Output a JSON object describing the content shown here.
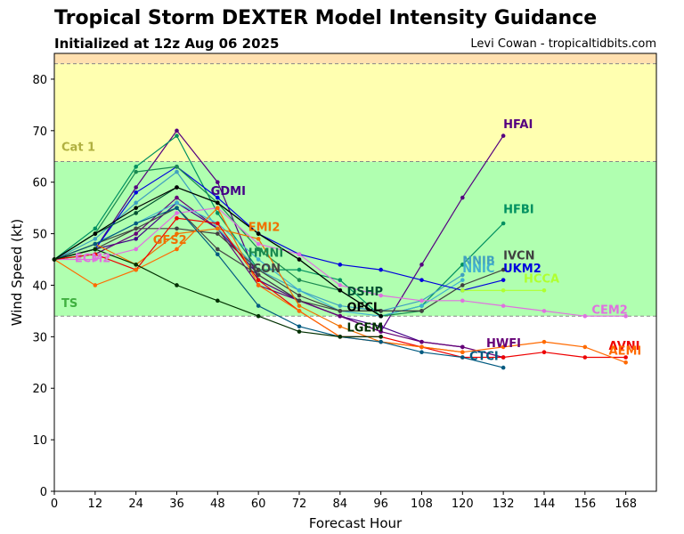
{
  "chart_data": {
    "type": "line",
    "title": "Tropical Storm DEXTER Model Intensity Guidance",
    "subtitle": "Initialized at 12z Aug 06 2025",
    "credit": "Levi Cowan - tropicaltidbits.com",
    "xlabel": "Forecast Hour",
    "ylabel": "Wind Speed (kt)",
    "xlim": [
      0,
      177
    ],
    "ylim": [
      0,
      85
    ],
    "xticks": [
      0,
      12,
      24,
      36,
      48,
      60,
      72,
      84,
      96,
      108,
      120,
      132,
      144,
      156,
      168
    ],
    "yticks": [
      0,
      10,
      20,
      30,
      40,
      50,
      60,
      70,
      80
    ],
    "bands": [
      {
        "label": "",
        "from": 83,
        "to": 85,
        "color": "#ffe0b0"
      },
      {
        "label": "Cat 1",
        "from": 64,
        "to": 83,
        "color": "#ffffb0",
        "label_color": "#b0b040"
      },
      {
        "label": "TS",
        "from": 34,
        "to": 64,
        "color": "#b0ffb0",
        "label_color": "#40b040"
      }
    ],
    "series": [
      {
        "name": "HFAI",
        "color": "#550080",
        "x": [
          0,
          12,
          24,
          36,
          48,
          60,
          72,
          84,
          96,
          108,
          120,
          132
        ],
        "y": [
          45,
          47,
          59,
          70,
          60,
          41,
          37,
          34,
          31,
          44,
          57,
          69
        ],
        "label_x": 132,
        "label_y": 70.5
      },
      {
        "name": "GDMI",
        "color": "#440088",
        "x": [
          0,
          12,
          24,
          36,
          48,
          60,
          72,
          84,
          96,
          108,
          120
        ],
        "y": [
          45,
          47,
          49,
          56,
          51,
          42,
          37,
          34,
          32,
          29,
          28
        ],
        "label_x": 46,
        "label_y": 57.5
      },
      {
        "name": "HWFI",
        "color": "#660077",
        "x": [
          0,
          12,
          24,
          36,
          48,
          60,
          72,
          84,
          96,
          108,
          120,
          132
        ],
        "y": [
          45,
          46,
          50,
          57,
          51,
          40,
          37,
          34,
          31,
          29,
          28,
          26
        ],
        "label_x": 127,
        "label_y": 28
      },
      {
        "name": "HFBI",
        "color": "#009060",
        "x": [
          0,
          12,
          24,
          36,
          48,
          60,
          72,
          84,
          96,
          108,
          120,
          132
        ],
        "y": [
          45,
          51,
          63,
          69,
          54,
          43,
          43,
          41,
          34,
          36,
          44,
          52
        ],
        "label_x": 132,
        "label_y": 54
      },
      {
        "name": "NNIB",
        "color": "#40a0c0",
        "x": [
          0,
          12,
          24,
          36,
          48,
          60,
          72,
          84,
          96,
          108,
          120
        ],
        "y": [
          45,
          49,
          56,
          62,
          51,
          43,
          39,
          36,
          35,
          37,
          42
        ],
        "label_x": 120,
        "label_y": 44
      },
      {
        "name": "NNIC",
        "color": "#40b0d0",
        "x": [
          0,
          12,
          24,
          36,
          48,
          60,
          72,
          84,
          96,
          108,
          120
        ],
        "y": [
          45,
          48,
          52,
          56,
          52,
          45,
          39,
          35,
          34,
          36,
          41
        ],
        "label_x": 120,
        "label_y": 42.5
      },
      {
        "name": "IVCN",
        "color": "#404040",
        "x": [
          0,
          12,
          24,
          36,
          48,
          60,
          72,
          84,
          96,
          108,
          120,
          132
        ],
        "y": [
          45,
          48,
          51,
          51,
          50,
          43,
          38,
          35,
          35,
          35,
          40,
          43
        ],
        "label_x": 132,
        "label_y": 45
      },
      {
        "name": "UKM2",
        "color": "#0000dd",
        "x": [
          0,
          12,
          24,
          36,
          48,
          60,
          72,
          84,
          96,
          108,
          120,
          132
        ],
        "y": [
          45,
          47,
          58,
          63,
          57,
          50,
          46,
          44,
          43,
          41,
          39,
          41
        ],
        "label_x": 132,
        "label_y": 42.5
      },
      {
        "name": "HCCA",
        "color": "#b0ff30",
        "x": [
          120,
          132,
          144
        ],
        "y": [
          39,
          39,
          39
        ],
        "label_x": 138,
        "label_y": 40.5
      },
      {
        "name": "HMNI",
        "color": "#1a8a50",
        "x": [
          0,
          12,
          24,
          36,
          48,
          60,
          72,
          84,
          96,
          108
        ],
        "y": [
          45,
          50,
          62,
          63,
          56,
          47,
          41,
          39,
          34,
          35
        ],
        "label_x": 57,
        "label_y": 45.5
      },
      {
        "name": "ICON",
        "color": "#444444",
        "x": [
          0,
          12,
          24,
          36,
          48,
          60,
          72,
          84,
          96,
          108
        ],
        "y": [
          45,
          47,
          51,
          55,
          47,
          42,
          37,
          35,
          35,
          35
        ],
        "label_x": 57,
        "label_y": 42.5
      },
      {
        "name": "EMI2",
        "color": "#f07000",
        "x": [
          0,
          12,
          24,
          36,
          48,
          60,
          72,
          84,
          96,
          108,
          120
        ],
        "y": [
          45,
          48,
          44,
          50,
          51,
          49,
          36,
          32,
          29,
          28,
          27
        ],
        "label_x": 57,
        "label_y": 50.5
      },
      {
        "name": "CEM2",
        "color": "#e070e0",
        "x": [
          0,
          12,
          24,
          36,
          48,
          60,
          72,
          84,
          96,
          108,
          120,
          132,
          144,
          156,
          168
        ],
        "y": [
          45,
          45,
          47,
          54,
          55,
          48,
          46,
          40,
          38,
          37,
          37,
          36,
          35,
          34,
          34
        ],
        "label_x": 158,
        "label_y": 34.5
      },
      {
        "name": "AVNI",
        "color": "#ee0000",
        "x": [
          0,
          12,
          24,
          36,
          48,
          60,
          72,
          84,
          96,
          108,
          120,
          132,
          144,
          156,
          168
        ],
        "y": [
          45,
          46,
          43,
          53,
          52,
          41,
          35,
          30,
          30,
          28,
          26,
          26,
          27,
          26,
          26
        ],
        "label_x": 163,
        "label_y": 27.5
      },
      {
        "name": "AEMI",
        "color": "#ff6a00",
        "x": [
          0,
          12,
          24,
          36,
          48,
          60,
          72,
          84,
          96,
          108,
          120,
          132,
          144,
          156,
          168
        ],
        "y": [
          45,
          40,
          43,
          47,
          55,
          40,
          35,
          30,
          29,
          28,
          27,
          28,
          29,
          28,
          25
        ],
        "label_x": 163,
        "label_y": 26.5
      },
      {
        "name": "CTCI",
        "color": "#005a80",
        "x": [
          0,
          12,
          24,
          36,
          48,
          60,
          72,
          84,
          96,
          108,
          120,
          132
        ],
        "y": [
          45,
          48,
          52,
          55,
          46,
          36,
          32,
          30,
          29,
          27,
          26,
          24
        ],
        "label_x": 122,
        "label_y": 25.5
      },
      {
        "name": "DSHP",
        "color": "#005030",
        "x": [
          0,
          12,
          24,
          36,
          48,
          60,
          72,
          84,
          96
        ],
        "y": [
          45,
          50,
          54,
          59,
          56,
          50,
          45,
          39,
          34
        ],
        "label_x": 86,
        "label_y": 38
      },
      {
        "name": "OFCL",
        "color": "#000000",
        "x": [
          0,
          12,
          24,
          36,
          48,
          60,
          72,
          84,
          96
        ],
        "y": [
          45,
          50,
          55,
          59,
          56,
          50,
          45,
          39,
          34
        ],
        "label_x": 86,
        "label_y": 35
      },
      {
        "name": "LGEM",
        "color": "#003000",
        "x": [
          0,
          12,
          24,
          36,
          48,
          60,
          72,
          84,
          96
        ],
        "y": [
          45,
          47,
          44,
          40,
          37,
          34,
          31,
          30,
          30
        ],
        "label_x": 86,
        "label_y": 31
      },
      {
        "name": "GFS2",
        "color": "#f07000",
        "x": [],
        "y": [],
        "label_x": 29,
        "label_y": 48
      },
      {
        "name": "ECM2",
        "color": "#e070e0",
        "x": [],
        "y": [],
        "label_x": 6,
        "label_y": 44.5
      }
    ]
  }
}
